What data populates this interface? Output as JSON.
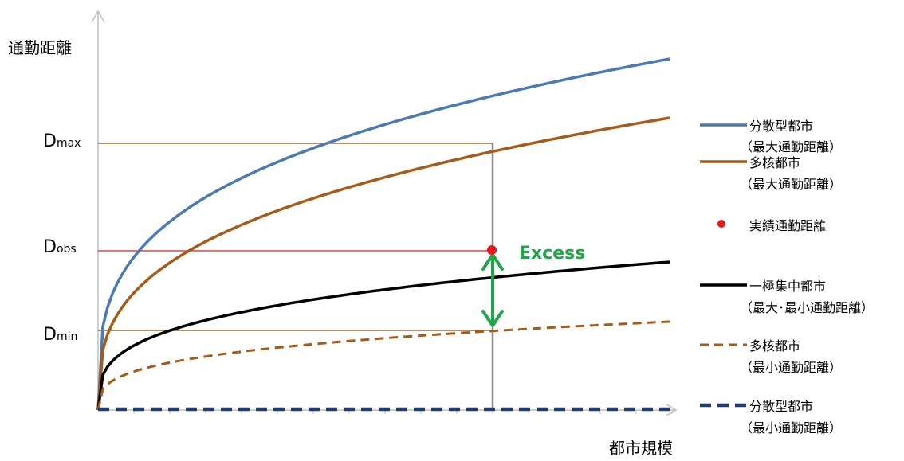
{
  "axes": {
    "ylabel": "通勤距離",
    "xlabel": "都市規模"
  },
  "levels": {
    "dmax": {
      "main": "D",
      "sub": "max"
    },
    "dobs": {
      "main": "D",
      "sub": "obs"
    },
    "dmin": {
      "main": "D",
      "sub": "min"
    }
  },
  "annotation": {
    "excess": "Excess"
  },
  "legend": [
    {
      "line1": "分散型都市",
      "line2": "（最大通勤距離）"
    },
    {
      "line1": "多核都市",
      "line2": "（最大通勤距離）"
    },
    {
      "line1": "実績通勤距離",
      "line2": ""
    },
    {
      "line1": "一極集中都市",
      "line2": "（最大･最小通勤距離）"
    },
    {
      "line1": "多核都市",
      "line2": "（最小通勤距離）"
    },
    {
      "line1": "分散型都市",
      "line2": "（最小通勤距離）"
    }
  ],
  "colors": {
    "blue": "#4a7ab5",
    "brown": "#a65b18",
    "black": "#000000",
    "red": "#e41a1c",
    "green": "#1fa64a",
    "navy": "#1f3e6e",
    "gray": "#8c8c8c",
    "dmaxline": "#8b4a0e",
    "dminline": "#8b4a0e"
  }
}
